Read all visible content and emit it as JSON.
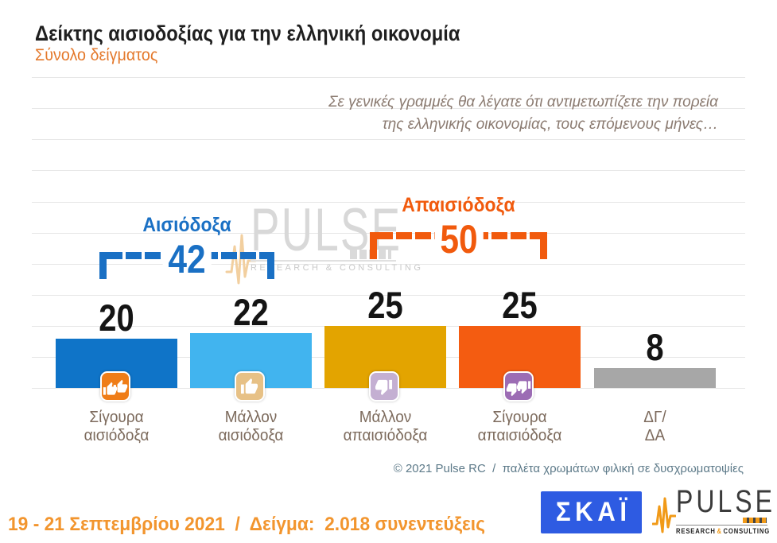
{
  "header": {
    "title": "Δείκτης αισιοδοξίας για την ελληνική οικονομία",
    "subtitle": "Σύνολο δείγματος"
  },
  "question": {
    "line1": "Σε γενικές γραμμές θα λέγατε ότι αντιμετωπίζετε την πορεία",
    "line2": "της ελληνικής οικονομίας, τους επόμενους μήνες…"
  },
  "chart_data": {
    "type": "bar",
    "title": "Δείκτης αισιοδοξίας για την ελληνική οικονομία",
    "subtitle": "Σύνολο δείγματος",
    "categories": [
      "Σίγουρα αισιόδοξα",
      "Μάλλον αισιόδοξα",
      "Μάλλον απαισιόδοξα",
      "Σίγουρα απαισιόδοξα",
      "ΔΓ/ΔΑ"
    ],
    "category_lines": [
      [
        "Σίγουρα",
        "αισιόδοξα"
      ],
      [
        "Μάλλον",
        "αισιόδοξα"
      ],
      [
        "Μάλλον",
        "απαισιόδοξα"
      ],
      [
        "Σίγουρα",
        "απαισιόδοξα"
      ],
      [
        "ΔΓ/",
        "ΔΑ"
      ]
    ],
    "values": [
      20,
      22,
      25,
      25,
      8
    ],
    "bar_colors": [
      "#0f74c8",
      "#41b4ef",
      "#e3a400",
      "#f45c11",
      "#a7a7a7"
    ],
    "bar_icons": [
      {
        "name": "double-thumbs-up-icon",
        "color": "#ef7d18"
      },
      {
        "name": "thumbs-up-icon",
        "color": "#e7c186"
      },
      {
        "name": "thumbs-down-icon",
        "color": "#c4afd2"
      },
      {
        "name": "double-thumbs-down-icon",
        "color": "#9c6cb4"
      },
      null
    ],
    "groups": [
      {
        "label": "Αισιόδοξα",
        "value": 42,
        "color": "#1a70c4",
        "covers": [
          "Σίγουρα αισιόδοξα",
          "Μάλλον αισιόδοξα"
        ]
      },
      {
        "label": "Απαισιόδοξα",
        "value": 50,
        "color": "#f15a0d",
        "covers": [
          "Μάλλον απαισιόδοξα",
          "Σίγουρα απαισιόδοξα"
        ]
      }
    ],
    "ylim": [
      0,
      125
    ],
    "gridlines": "horizontal, unlabeled",
    "legend": "none"
  },
  "watermark": {
    "brand": "PULSE",
    "tagline": "RESEARCH & CONSULTING"
  },
  "footer": {
    "credit": "© 2021 Pulse RC  /  παλέτα χρωμάτων φιλική σε δυσχρωματοψίες"
  },
  "bottom": {
    "fieldwork": "19 - 21 Σεπτεμβρίου 2021  /  Δείγμα:  2.018 συνεντεύξεις",
    "skai_logo_text": "ΣΚΑΪ",
    "pulse_logo": {
      "brand": "PULSE",
      "tagline_research": "RESEARCH",
      "tagline_amp": "&",
      "tagline_consulting": "CONSULTING"
    }
  }
}
